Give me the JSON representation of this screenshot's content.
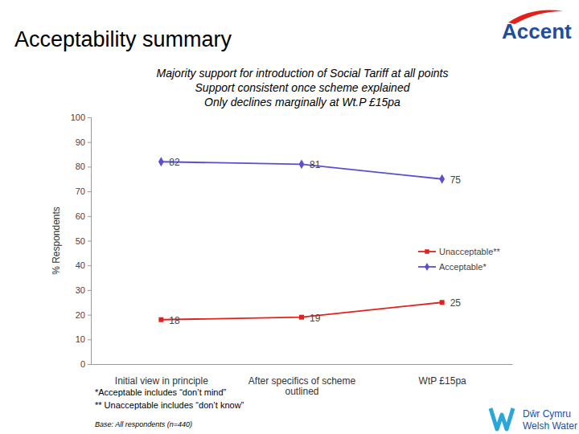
{
  "chart_data": {
    "type": "line",
    "title": "Acceptability summary",
    "subtitle": [
      "Majority support for introduction of Social Tariff at all points",
      "Support consistent once scheme explained",
      "Only declines marginally at Wt.P £15pa"
    ],
    "y_label": "% Respondents",
    "categories": [
      "Initial view in principle",
      "After specifics of scheme outlined",
      "WtP £15pa"
    ],
    "series": [
      {
        "name": "Unacceptable**",
        "color": "#e3211c",
        "marker": "square",
        "values": [
          18,
          19,
          25
        ]
      },
      {
        "name": "Acceptable*",
        "color": "#5a4fd3",
        "marker": "diamond",
        "values": [
          82,
          81,
          75
        ]
      }
    ],
    "ylim": [
      0,
      100
    ],
    "yticks": [
      0,
      10,
      20,
      30,
      40,
      50,
      60,
      70,
      80,
      90,
      100
    ],
    "grid": false,
    "legend": "right",
    "data_labels": true,
    "footnotes": [
      "*Acceptable includes “don’t mind”",
      "** Unacceptable includes “don’t know”"
    ],
    "base_note": "Base: All respondents (n=440)",
    "logos": [
      "Accent",
      "Dŵr Cymru",
      "Welsh Water"
    ]
  }
}
